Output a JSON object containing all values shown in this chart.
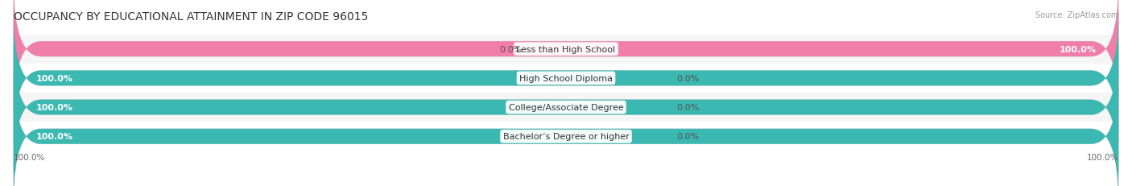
{
  "title": "OCCUPANCY BY EDUCATIONAL ATTAINMENT IN ZIP CODE 96015",
  "source": "Source: ZipAtlas.com",
  "categories": [
    "Less than High School",
    "High School Diploma",
    "College/Associate Degree",
    "Bachelor’s Degree or higher"
  ],
  "owner_values": [
    0.0,
    100.0,
    100.0,
    100.0
  ],
  "renter_values": [
    100.0,
    0.0,
    0.0,
    0.0
  ],
  "owner_color": "#3bb8b2",
  "renter_color": "#f07ea8",
  "bar_bg_color": "#e8e8e8",
  "background_color": "#ffffff",
  "row_bg_colors": [
    "#f5f5f5",
    "#ffffff",
    "#f5f5f5",
    "#ffffff"
  ],
  "title_fontsize": 10,
  "label_fontsize": 8,
  "tick_fontsize": 7.5,
  "legend_fontsize": 8,
  "source_fontsize": 7,
  "bar_height": 0.52,
  "figsize": [
    14.06,
    2.32
  ],
  "dpi": 100
}
